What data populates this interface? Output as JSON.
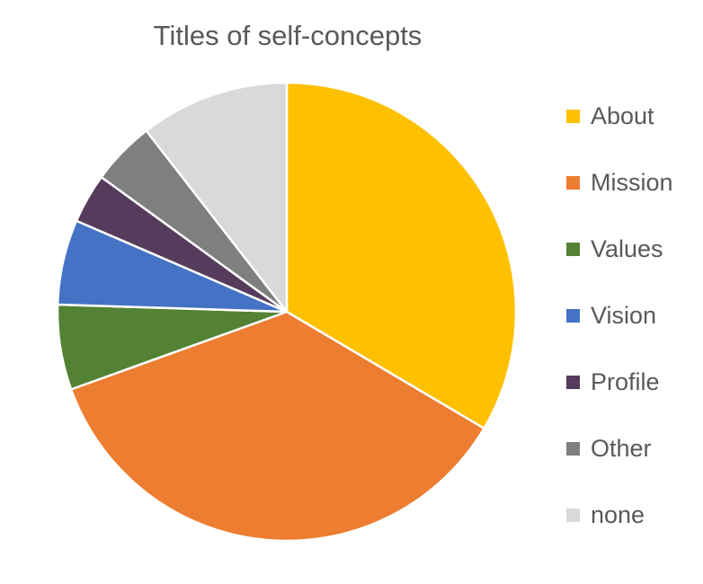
{
  "chart_data": {
    "type": "pie",
    "title": "Titles of self-concepts",
    "categories": [
      "About",
      "Mission",
      "Values",
      "Vision",
      "Profile",
      "Other",
      "none"
    ],
    "values": [
      33.5,
      36.0,
      6.0,
      6.0,
      3.5,
      4.5,
      10.5
    ],
    "unit": "",
    "colors": [
      "#FFC000",
      "#ED7D31",
      "#548235",
      "#4472C4",
      "#563C5C",
      "#7F7F7F",
      "#D9D9D9"
    ],
    "legend_position": "right",
    "start_angle": "12 o'clock",
    "direction": "clockwise",
    "slice_border_color": "#FFFFFF"
  }
}
